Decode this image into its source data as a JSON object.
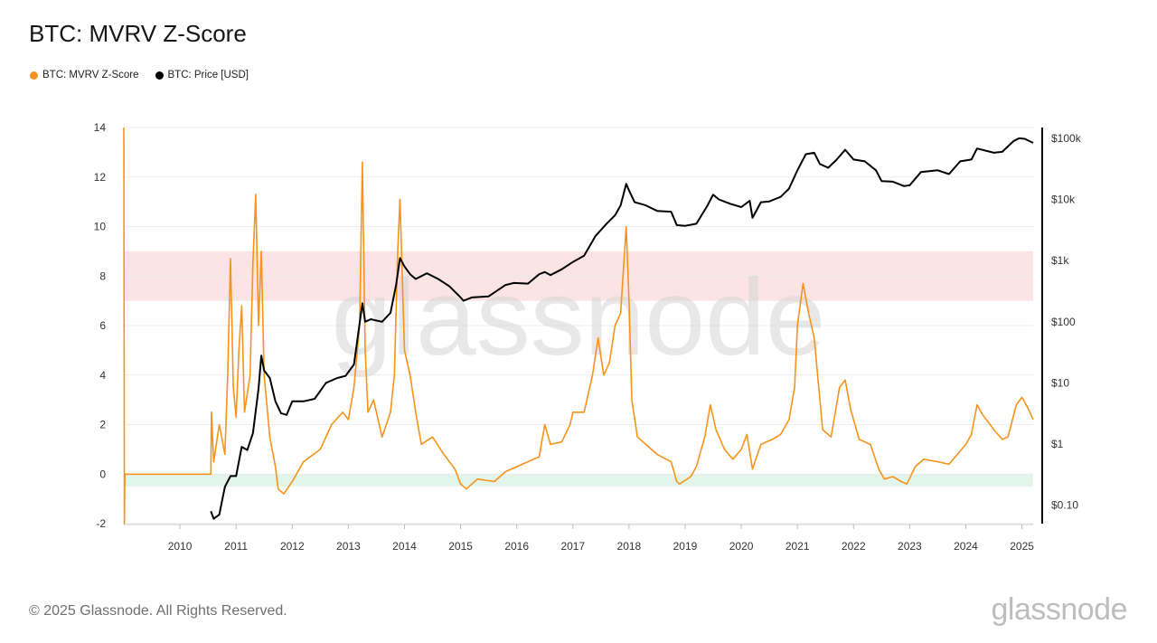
{
  "page": {
    "title": "BTC: MVRV Z-Score",
    "copyright": "© 2025 Glassnode. All Rights Reserved.",
    "brand": "glassnode",
    "watermark": "glassnode"
  },
  "legend": [
    {
      "label": "BTC: MVRV Z-Score",
      "color": "#f7931a"
    },
    {
      "label": "BTC: Price [USD]",
      "color": "#000000"
    }
  ],
  "chart_data": {
    "type": "line",
    "title": "BTC: MVRV Z-Score",
    "x_ticks": [
      "2010",
      "2011",
      "2012",
      "2013",
      "2014",
      "2015",
      "2016",
      "2017",
      "2018",
      "2019",
      "2020",
      "2021",
      "2022",
      "2023",
      "2024",
      "2025"
    ],
    "y_left": {
      "ticks": [
        "14",
        "12",
        "10",
        "8",
        "6",
        "4",
        "2",
        "0",
        "-2"
      ],
      "range": [
        -2,
        14
      ]
    },
    "y_right": {
      "ticks": [
        "$100k",
        "$10k",
        "$1k",
        "$100",
        "$10",
        "$1",
        "$0.10"
      ],
      "scale": "log",
      "range": [
        0.05,
        150000
      ]
    },
    "bands": [
      {
        "name": "overvalued zone",
        "y_from": 7,
        "y_to": 9,
        "color": "#fde4e4"
      },
      {
        "name": "undervalued zone",
        "y_from": -0.5,
        "y_to": 0,
        "color": "#e3f4ea"
      }
    ],
    "grid": true,
    "series": [
      {
        "name": "BTC: MVRV Z-Score",
        "color": "#f7931a",
        "axis": "left",
        "points": [
          [
            2009.0,
            14
          ],
          [
            2009.01,
            -2
          ],
          [
            2009.02,
            0
          ],
          [
            2010.55,
            0
          ],
          [
            2010.56,
            2.5
          ],
          [
            2010.6,
            0.5
          ],
          [
            2010.7,
            2
          ],
          [
            2010.8,
            0.8
          ],
          [
            2010.85,
            4
          ],
          [
            2010.9,
            8.7
          ],
          [
            2010.95,
            3.5
          ],
          [
            2011.0,
            2.3
          ],
          [
            2011.05,
            5
          ],
          [
            2011.1,
            6.8
          ],
          [
            2011.15,
            2.5
          ],
          [
            2011.25,
            4
          ],
          [
            2011.3,
            8.5
          ],
          [
            2011.35,
            11.3
          ],
          [
            2011.4,
            6
          ],
          [
            2011.45,
            9
          ],
          [
            2011.5,
            4
          ],
          [
            2011.6,
            1.5
          ],
          [
            2011.7,
            0.3
          ],
          [
            2011.75,
            -0.6
          ],
          [
            2011.85,
            -0.8
          ],
          [
            2012.0,
            -0.3
          ],
          [
            2012.2,
            0.5
          ],
          [
            2012.5,
            1
          ],
          [
            2012.7,
            2
          ],
          [
            2012.9,
            2.5
          ],
          [
            2013.0,
            2.2
          ],
          [
            2013.1,
            3.5
          ],
          [
            2013.2,
            6
          ],
          [
            2013.25,
            12.6
          ],
          [
            2013.3,
            5
          ],
          [
            2013.35,
            2.5
          ],
          [
            2013.45,
            3
          ],
          [
            2013.6,
            1.5
          ],
          [
            2013.75,
            2.5
          ],
          [
            2013.82,
            4
          ],
          [
            2013.88,
            9
          ],
          [
            2013.92,
            11.1
          ],
          [
            2014.0,
            5
          ],
          [
            2014.1,
            4
          ],
          [
            2014.2,
            2.5
          ],
          [
            2014.3,
            1.2
          ],
          [
            2014.5,
            1.5
          ],
          [
            2014.7,
            0.8
          ],
          [
            2014.9,
            0.2
          ],
          [
            2015.0,
            -0.4
          ],
          [
            2015.1,
            -0.6
          ],
          [
            2015.3,
            -0.2
          ],
          [
            2015.6,
            -0.3
          ],
          [
            2015.8,
            0.1
          ],
          [
            2016.0,
            0.3
          ],
          [
            2016.2,
            0.5
          ],
          [
            2016.4,
            0.7
          ],
          [
            2016.5,
            2
          ],
          [
            2016.6,
            1.2
          ],
          [
            2016.8,
            1.3
          ],
          [
            2016.95,
            2
          ],
          [
            2017.0,
            2.5
          ],
          [
            2017.2,
            2.5
          ],
          [
            2017.35,
            4
          ],
          [
            2017.45,
            5.5
          ],
          [
            2017.55,
            4
          ],
          [
            2017.65,
            4.5
          ],
          [
            2017.75,
            6
          ],
          [
            2017.85,
            6.5
          ],
          [
            2017.95,
            10
          ],
          [
            2018.0,
            7
          ],
          [
            2018.05,
            3
          ],
          [
            2018.15,
            1.5
          ],
          [
            2018.3,
            1.2
          ],
          [
            2018.5,
            0.8
          ],
          [
            2018.75,
            0.5
          ],
          [
            2018.85,
            -0.3
          ],
          [
            2018.9,
            -0.4
          ],
          [
            2019.1,
            -0.1
          ],
          [
            2019.2,
            0.3
          ],
          [
            2019.35,
            1.5
          ],
          [
            2019.45,
            2.8
          ],
          [
            2019.55,
            1.8
          ],
          [
            2019.7,
            1
          ],
          [
            2019.85,
            0.6
          ],
          [
            2020.0,
            1
          ],
          [
            2020.1,
            1.6
          ],
          [
            2020.2,
            0.2
          ],
          [
            2020.35,
            1.2
          ],
          [
            2020.55,
            1.4
          ],
          [
            2020.7,
            1.6
          ],
          [
            2020.85,
            2.2
          ],
          [
            2020.95,
            3.5
          ],
          [
            2021.0,
            6
          ],
          [
            2021.1,
            7.7
          ],
          [
            2021.2,
            6.5
          ],
          [
            2021.3,
            5.5
          ],
          [
            2021.38,
            3.5
          ],
          [
            2021.45,
            1.8
          ],
          [
            2021.6,
            1.5
          ],
          [
            2021.75,
            3.5
          ],
          [
            2021.85,
            3.8
          ],
          [
            2021.95,
            2.6
          ],
          [
            2022.0,
            2.2
          ],
          [
            2022.1,
            1.4
          ],
          [
            2022.3,
            1.2
          ],
          [
            2022.45,
            0.2
          ],
          [
            2022.55,
            -0.2
          ],
          [
            2022.7,
            -0.1
          ],
          [
            2022.85,
            -0.3
          ],
          [
            2022.95,
            -0.4
          ],
          [
            2023.1,
            0.3
          ],
          [
            2023.25,
            0.6
          ],
          [
            2023.5,
            0.5
          ],
          [
            2023.7,
            0.4
          ],
          [
            2023.85,
            0.8
          ],
          [
            2024.0,
            1.2
          ],
          [
            2024.1,
            1.6
          ],
          [
            2024.2,
            2.8
          ],
          [
            2024.3,
            2.4
          ],
          [
            2024.5,
            1.8
          ],
          [
            2024.65,
            1.4
          ],
          [
            2024.75,
            1.5
          ],
          [
            2024.9,
            2.8
          ],
          [
            2025.0,
            3.1
          ],
          [
            2025.1,
            2.7
          ],
          [
            2025.2,
            2.2
          ]
        ]
      },
      {
        "name": "BTC: Price [USD]",
        "color": "#000000",
        "axis": "right",
        "points": [
          [
            2010.55,
            0.08
          ],
          [
            2010.6,
            0.06
          ],
          [
            2010.7,
            0.07
          ],
          [
            2010.8,
            0.2
          ],
          [
            2010.9,
            0.3
          ],
          [
            2011.0,
            0.3
          ],
          [
            2011.1,
            0.9
          ],
          [
            2011.2,
            0.8
          ],
          [
            2011.3,
            1.5
          ],
          [
            2011.4,
            8
          ],
          [
            2011.45,
            28
          ],
          [
            2011.5,
            16
          ],
          [
            2011.6,
            12
          ],
          [
            2011.7,
            5
          ],
          [
            2011.8,
            3.2
          ],
          [
            2011.9,
            3
          ],
          [
            2012.0,
            5
          ],
          [
            2012.2,
            5
          ],
          [
            2012.4,
            5.5
          ],
          [
            2012.6,
            10
          ],
          [
            2012.8,
            12
          ],
          [
            2012.95,
            13
          ],
          [
            2013.1,
            20
          ],
          [
            2013.25,
            200
          ],
          [
            2013.3,
            100
          ],
          [
            2013.4,
            110
          ],
          [
            2013.6,
            100
          ],
          [
            2013.75,
            140
          ],
          [
            2013.85,
            400
          ],
          [
            2013.92,
            1100
          ],
          [
            2014.0,
            800
          ],
          [
            2014.1,
            600
          ],
          [
            2014.2,
            500
          ],
          [
            2014.4,
            620
          ],
          [
            2014.6,
            500
          ],
          [
            2014.8,
            380
          ],
          [
            2015.0,
            250
          ],
          [
            2015.05,
            220
          ],
          [
            2015.2,
            250
          ],
          [
            2015.5,
            260
          ],
          [
            2015.8,
            400
          ],
          [
            2015.95,
            430
          ],
          [
            2016.2,
            420
          ],
          [
            2016.4,
            600
          ],
          [
            2016.5,
            650
          ],
          [
            2016.6,
            580
          ],
          [
            2016.8,
            720
          ],
          [
            2017.0,
            950
          ],
          [
            2017.2,
            1200
          ],
          [
            2017.4,
            2500
          ],
          [
            2017.6,
            4000
          ],
          [
            2017.75,
            5500
          ],
          [
            2017.85,
            8000
          ],
          [
            2017.95,
            18000
          ],
          [
            2018.0,
            14000
          ],
          [
            2018.1,
            9000
          ],
          [
            2018.3,
            8000
          ],
          [
            2018.5,
            6500
          ],
          [
            2018.75,
            6300
          ],
          [
            2018.85,
            3800
          ],
          [
            2019.0,
            3700
          ],
          [
            2019.2,
            4000
          ],
          [
            2019.4,
            8000
          ],
          [
            2019.5,
            12000
          ],
          [
            2019.6,
            10000
          ],
          [
            2019.8,
            8500
          ],
          [
            2020.0,
            7500
          ],
          [
            2020.15,
            9500
          ],
          [
            2020.2,
            5000
          ],
          [
            2020.35,
            9000
          ],
          [
            2020.5,
            9300
          ],
          [
            2020.7,
            11000
          ],
          [
            2020.85,
            15000
          ],
          [
            2021.0,
            30000
          ],
          [
            2021.15,
            55000
          ],
          [
            2021.3,
            58000
          ],
          [
            2021.4,
            38000
          ],
          [
            2021.55,
            33000
          ],
          [
            2021.7,
            45000
          ],
          [
            2021.85,
            65000
          ],
          [
            2022.0,
            45000
          ],
          [
            2022.2,
            42000
          ],
          [
            2022.4,
            30000
          ],
          [
            2022.5,
            20000
          ],
          [
            2022.7,
            19500
          ],
          [
            2022.9,
            16500
          ],
          [
            2023.0,
            17000
          ],
          [
            2023.2,
            28000
          ],
          [
            2023.5,
            30000
          ],
          [
            2023.7,
            26000
          ],
          [
            2023.9,
            42000
          ],
          [
            2024.1,
            45000
          ],
          [
            2024.2,
            68000
          ],
          [
            2024.5,
            58000
          ],
          [
            2024.65,
            60000
          ],
          [
            2024.85,
            90000
          ],
          [
            2024.95,
            100000
          ],
          [
            2025.05,
            98000
          ],
          [
            2025.2,
            84000
          ]
        ]
      }
    ]
  }
}
